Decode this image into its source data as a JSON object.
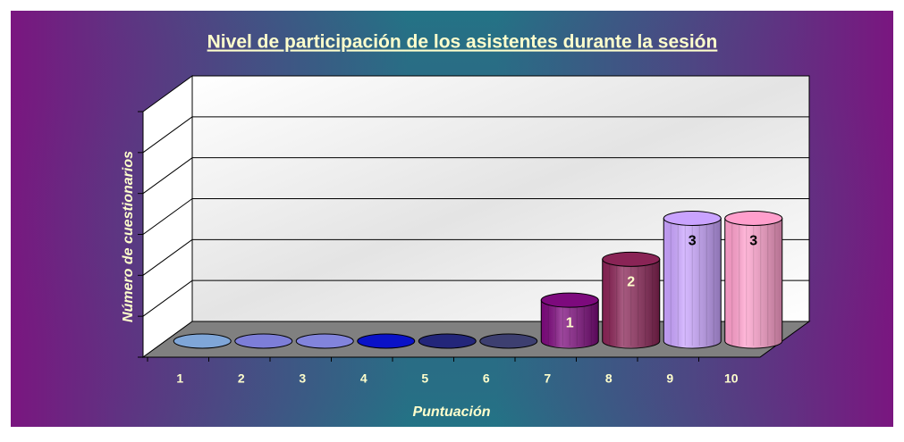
{
  "chart_data": {
    "type": "bar",
    "title": "Nivel de participación de los asistentes durante la sesión",
    "x_label": "Puntuación",
    "y_label": "Número de cuestionarios",
    "categories": [
      "1",
      "2",
      "3",
      "4",
      "5",
      "6",
      "7",
      "8",
      "9",
      "10"
    ],
    "values": [
      0,
      0,
      0,
      0,
      0,
      0,
      1,
      2,
      3,
      3
    ],
    "colors": [
      "#7fa6d8",
      "#7d7ed8",
      "#8284dc",
      "#0a12c8",
      "#23267a",
      "#3d3f70",
      "#7d0a7d",
      "#8a2456",
      "#c9a3ff",
      "#ff9fcc"
    ],
    "ylim": [
      0,
      6
    ],
    "yticks": [
      0,
      1,
      2,
      3,
      4,
      5,
      6
    ],
    "grid": true
  }
}
